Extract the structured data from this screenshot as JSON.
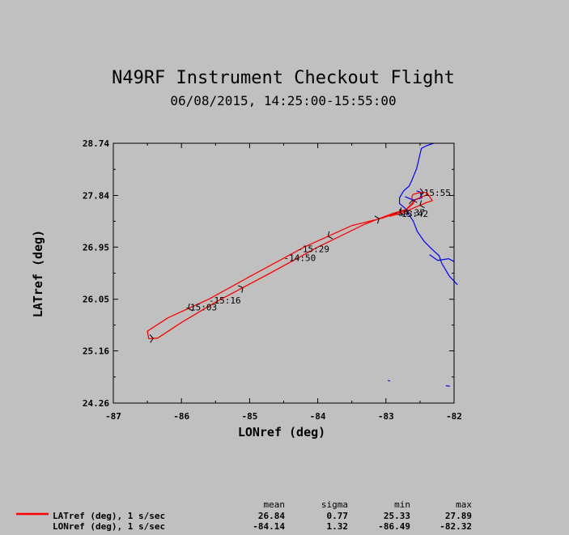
{
  "chart_data": {
    "type": "line",
    "title": "N49RF Instrument Checkout Flight",
    "subtitle": "06/08/2015, 14:25:00-15:55:00",
    "xlabel": "LONref (deg)",
    "ylabel": "LATref (deg)",
    "xlim": [
      -87,
      -82
    ],
    "ylim": [
      24.26,
      28.74
    ],
    "xticks": [
      "-87",
      "-86",
      "-85",
      "-84",
      "-83",
      "-82"
    ],
    "yticks": [
      "24.26",
      "25.16",
      "26.05",
      "26.95",
      "27.84",
      "28.74"
    ],
    "grid": false,
    "series": [
      {
        "name": "LATref (deg), 1 s/sec",
        "color": "#ff0000",
        "lon": [
          -82.38,
          -82.55,
          -82.72,
          -82.88,
          -83.05,
          -83.5,
          -84.2,
          -85.0,
          -85.6,
          -86.2,
          -86.5,
          -86.48,
          -86.35,
          -86.0,
          -85.5,
          -84.7,
          -84.0,
          -83.3,
          -82.9,
          -82.7,
          -82.6,
          -82.62,
          -82.6,
          -82.5,
          -82.4,
          -82.32,
          -82.4,
          -82.6,
          -82.75,
          -82.95
        ],
        "lat": [
          27.86,
          27.78,
          27.58,
          27.52,
          27.45,
          27.32,
          26.95,
          26.44,
          26.05,
          25.73,
          25.5,
          25.37,
          25.38,
          25.65,
          26.0,
          26.5,
          26.95,
          27.35,
          27.53,
          27.6,
          27.7,
          27.82,
          27.86,
          27.89,
          27.89,
          27.75,
          27.72,
          27.62,
          27.54,
          27.48
        ]
      }
    ],
    "time_labels": [
      {
        "text": "15:03",
        "lon": -85.95,
        "lat": 25.86
      },
      {
        "text": "15:16",
        "lon": -85.6,
        "lat": 25.98
      },
      {
        "text": "14:50",
        "lon": -84.5,
        "lat": 26.71
      },
      {
        "text": "15:29",
        "lon": -84.3,
        "lat": 26.86
      },
      {
        "text": "15:55",
        "lon": -82.52,
        "lat": 27.83
      },
      {
        "text": "15:42",
        "lon": -82.85,
        "lat": 27.47
      },
      {
        "text": "14:37",
        "lon": -82.9,
        "lat": 27.49
      }
    ],
    "coastline_color": "#0000ff",
    "coastline": [
      [
        [
          -82.3,
          28.74
        ],
        [
          -82.4,
          28.7
        ],
        [
          -82.48,
          28.65
        ],
        [
          -82.55,
          28.3
        ],
        [
          -82.62,
          28.1
        ],
        [
          -82.66,
          28.0
        ],
        [
          -82.74,
          27.92
        ],
        [
          -82.8,
          27.8
        ],
        [
          -82.8,
          27.7
        ],
        [
          -82.72,
          27.62
        ],
        [
          -82.67,
          27.52
        ],
        [
          -82.6,
          27.4
        ],
        [
          -82.54,
          27.22
        ],
        [
          -82.44,
          27.05
        ],
        [
          -82.33,
          26.92
        ],
        [
          -82.22,
          26.8
        ],
        [
          -82.18,
          26.67
        ],
        [
          -82.07,
          26.45
        ],
        [
          -81.95,
          26.3
        ]
      ],
      [
        [
          -82.72,
          27.82
        ],
        [
          -82.6,
          27.76
        ],
        [
          -82.47,
          27.8
        ],
        [
          -82.5,
          27.9
        ],
        [
          -82.55,
          27.92
        ]
      ],
      [
        [
          -82.36,
          26.82
        ],
        [
          -82.24,
          26.72
        ],
        [
          -82.08,
          26.75
        ],
        [
          -82.0,
          26.7
        ]
      ],
      [
        [
          -82.97,
          24.65
        ],
        [
          -82.94,
          24.64
        ]
      ],
      [
        [
          -82.12,
          24.56
        ],
        [
          -82.06,
          24.55
        ]
      ]
    ],
    "statistics": {
      "headers": [
        "mean",
        "sigma",
        "min",
        "max"
      ],
      "rows": [
        {
          "label": "LATref (deg), 1 s/sec",
          "values": [
            "26.84",
            "0.77",
            "25.33",
            "27.89"
          ]
        },
        {
          "label": "LONref (deg), 1 s/sec",
          "values": [
            "-84.14",
            "1.32",
            "-86.49",
            "-82.32"
          ]
        }
      ]
    }
  }
}
